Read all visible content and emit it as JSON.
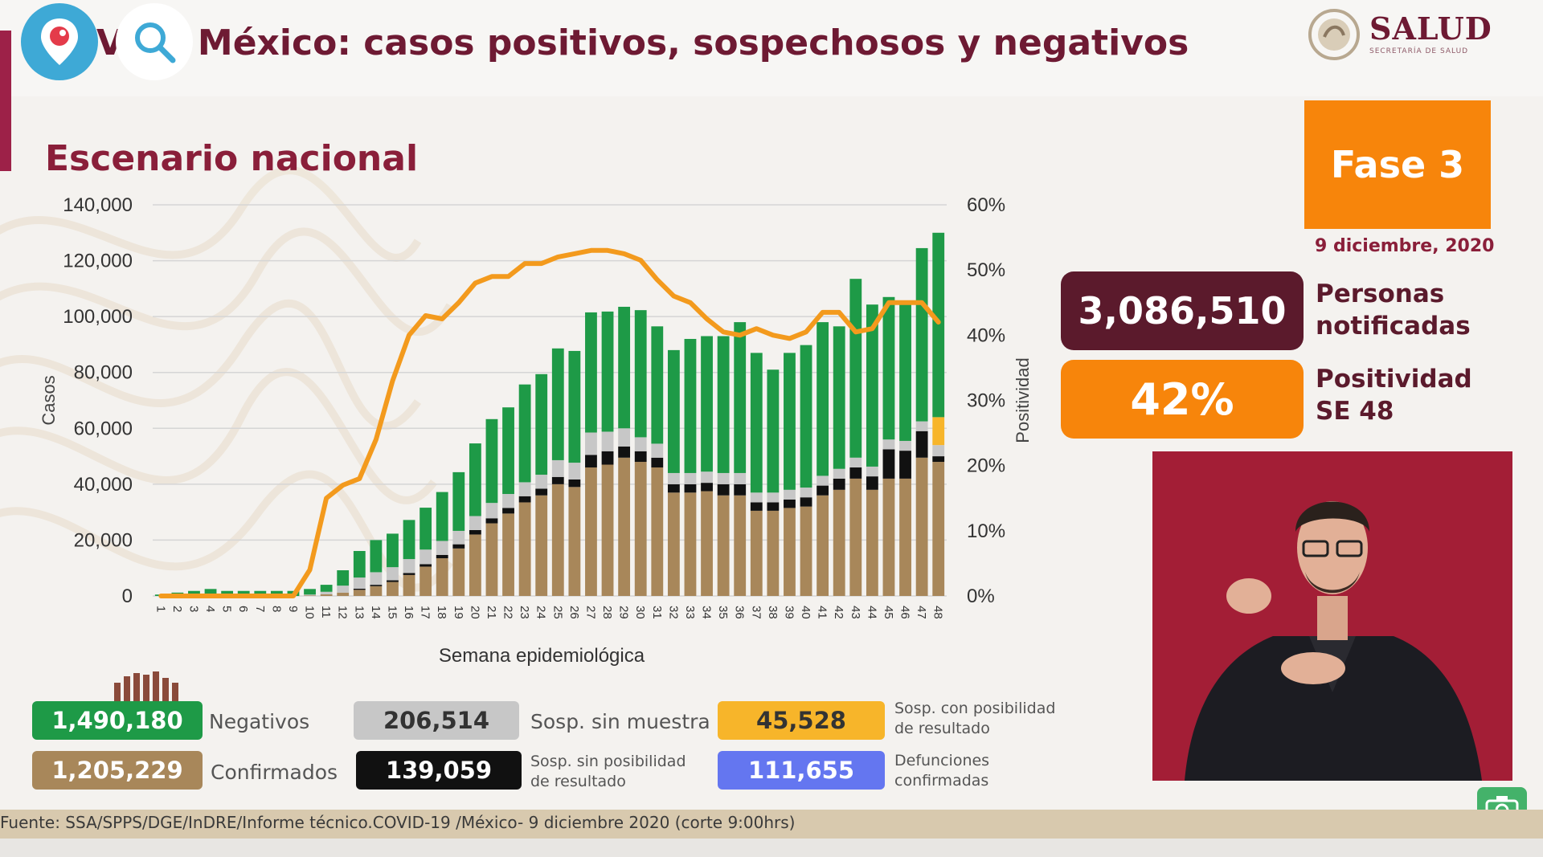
{
  "header": {
    "title": "V  19 México: casos positivos, sospechosos y negativos",
    "logo_text": "SALUD",
    "logo_sub": "SECRETARÍA DE SALUD"
  },
  "subtitle": "Escenario nacional",
  "fase": "Fase 3",
  "fecha": "9 diciembre, 2020",
  "stats": [
    {
      "value": "3,086,510",
      "label_line1": "Personas",
      "label_line2": "notificadas",
      "color": "#5b1a2c"
    },
    {
      "value": "42%",
      "label_line1": "Positividad",
      "label_line2": "SE 48",
      "color": "#f7850b"
    }
  ],
  "legend": {
    "negativos": {
      "value": "1,490,180",
      "label": "Negativos",
      "color": "#1e9a47"
    },
    "confirmados": {
      "value": "1,205,229",
      "label": "Confirmados",
      "color": "#a8875a"
    },
    "sosp_sin_muestra": {
      "value": "206,514",
      "label": "Sosp. sin muestra",
      "color": "#c7c7c7"
    },
    "sosp_sin_posibilidad": {
      "value": "139,059",
      "label1": "Sosp. sin posibilidad",
      "label2": "de resultado",
      "color": "#111111"
    },
    "sosp_con_posibilidad": {
      "value": "45,528",
      "label1": "Sosp. con posibilidad",
      "label2": "de resultado",
      "color": "#f7b52a"
    },
    "defunciones": {
      "value": "111,655",
      "label1": "Defunciones",
      "label2": "confirmadas",
      "color": "#6476f0"
    }
  },
  "source": "Fuente: SSA/SPPS/DGE/InDRE/Informe técnico.COVID-19 /México- 9 diciembre 2020 (corte 9:00hrs)",
  "chart_data": {
    "type": "bar",
    "stacked": true,
    "xlabel": "Semana epidemiológica",
    "ylabel": "Casos",
    "y2label": "Positividad",
    "ylim": [
      0,
      140000
    ],
    "y2lim": [
      0,
      60
    ],
    "yticks": [
      "0",
      "20,000",
      "40,000",
      "60,000",
      "80,000",
      "100,000",
      "120,000",
      "140,000"
    ],
    "y2ticks": [
      "0%",
      "10%",
      "20%",
      "30%",
      "40%",
      "50%",
      "60%"
    ],
    "categories": [
      "1",
      "2",
      "3",
      "4",
      "5",
      "6",
      "7",
      "8",
      "9",
      "10",
      "11",
      "12",
      "13",
      "14",
      "15",
      "16",
      "17",
      "18",
      "19",
      "20",
      "21",
      "22",
      "23",
      "24",
      "25",
      "26",
      "27",
      "28",
      "29",
      "30",
      "31",
      "32",
      "33",
      "34",
      "35",
      "36",
      "37",
      "38",
      "39",
      "40",
      "41",
      "42",
      "43",
      "44",
      "45",
      "46",
      "47",
      "48"
    ],
    "series": [
      {
        "name": "Confirmados",
        "color": "#a8875a",
        "values": [
          0,
          0,
          0,
          0,
          0,
          0,
          0,
          0,
          0,
          200,
          600,
          1200,
          2200,
          3500,
          5000,
          7500,
          10500,
          13500,
          17000,
          22000,
          26000,
          29500,
          33500,
          36000,
          40000,
          39000,
          46000,
          47000,
          49500,
          48000,
          46000,
          37000,
          37000,
          37500,
          36000,
          36000,
          30500,
          30500,
          31500,
          32000,
          36000,
          38000,
          42000,
          38000,
          42000,
          42000,
          49500,
          48000
        ]
      },
      {
        "name": "Sosp. sin posibilidad de resultado",
        "color": "#111111",
        "values": [
          0,
          0,
          0,
          0,
          0,
          0,
          0,
          0,
          0,
          0,
          0,
          0,
          400,
          500,
          600,
          700,
          900,
          1200,
          1500,
          1600,
          1800,
          2000,
          2200,
          2400,
          2600,
          2700,
          4500,
          4800,
          4000,
          3800,
          3500,
          3000,
          3000,
          3000,
          4000,
          4000,
          3000,
          3000,
          3000,
          3300,
          3500,
          4000,
          4000,
          4800,
          10500,
          10000,
          9500,
          2000
        ]
      },
      {
        "name": "Sosp. sin muestra",
        "color": "#c7c7c7",
        "values": [
          0,
          0,
          0,
          0,
          0,
          0,
          0,
          0,
          0,
          300,
          900,
          2500,
          4000,
          4500,
          4700,
          5000,
          5200,
          5000,
          4800,
          5000,
          5500,
          5000,
          5000,
          5000,
          6000,
          6000,
          8000,
          7000,
          6500,
          5000,
          5000,
          4000,
          4000,
          4000,
          4000,
          4000,
          3500,
          3500,
          3500,
          3500,
          3500,
          3500,
          3500,
          3500,
          3500,
          3500,
          3500,
          4000
        ]
      },
      {
        "name": "Sosp. con posibilidad de resultado",
        "color": "#f7b52a",
        "values": [
          0,
          0,
          0,
          0,
          0,
          0,
          0,
          0,
          0,
          0,
          0,
          0,
          0,
          0,
          0,
          0,
          0,
          0,
          0,
          0,
          0,
          0,
          0,
          0,
          0,
          0,
          0,
          0,
          0,
          0,
          0,
          0,
          0,
          0,
          0,
          0,
          0,
          0,
          0,
          0,
          0,
          0,
          0,
          0,
          0,
          0,
          0,
          10000
        ]
      },
      {
        "name": "Negativos",
        "color": "#1e9a47",
        "values": [
          500,
          1200,
          1800,
          2500,
          1800,
          1800,
          1800,
          1800,
          1800,
          2000,
          2500,
          5500,
          9500,
          11500,
          12000,
          14000,
          15000,
          17500,
          21000,
          26000,
          30000,
          31000,
          35000,
          36000,
          40000,
          40000,
          43000,
          43000,
          43500,
          45500,
          42000,
          44000,
          48000,
          48500,
          49000,
          54000,
          50000,
          44000,
          49000,
          51000,
          55000,
          51000,
          64000,
          58000,
          51000,
          50000,
          62000,
          66000
        ]
      }
    ],
    "line": {
      "name": "Positividad",
      "axis": "y2",
      "color": "#f39a1d",
      "values": [
        0,
        0,
        0,
        0,
        0,
        0,
        0,
        0,
        0,
        4,
        15,
        17,
        18,
        24,
        33,
        40,
        43,
        42.5,
        45,
        48,
        49,
        49,
        51,
        51,
        52,
        52.5,
        53,
        53,
        52.5,
        51.5,
        48.5,
        46,
        45,
        42.5,
        40.5,
        40,
        41,
        40,
        39.5,
        40.5,
        43.5,
        43.5,
        40.5,
        41,
        45,
        45,
        45,
        42
      ]
    }
  }
}
